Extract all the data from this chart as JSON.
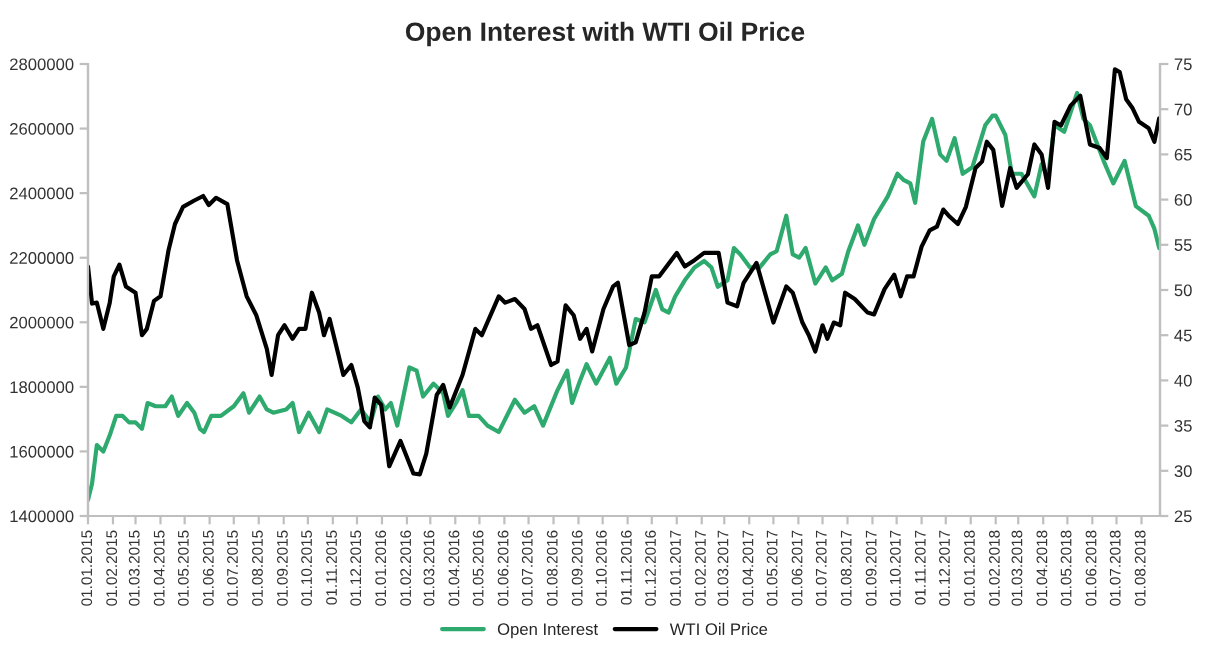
{
  "chart_data": {
    "type": "line",
    "title": "Open Interest with WTI Oil Price",
    "xlim": [
      "2015-01-01",
      "2018-08-24"
    ],
    "xticks": [
      {
        "value": "2015-01-01",
        "label": "01.01.2015"
      },
      {
        "value": "2015-02-01",
        "label": "01.02.2015"
      },
      {
        "value": "2015-03-01",
        "label": "01.03.2015"
      },
      {
        "value": "2015-04-01",
        "label": "01.04.2015"
      },
      {
        "value": "2015-05-01",
        "label": "01.05.2015"
      },
      {
        "value": "2015-06-01",
        "label": "01.06.2015"
      },
      {
        "value": "2015-07-01",
        "label": "01.07.2015"
      },
      {
        "value": "2015-08-01",
        "label": "01.08.2015"
      },
      {
        "value": "2015-09-01",
        "label": "01.09.2015"
      },
      {
        "value": "2015-10-01",
        "label": "01.10.2015"
      },
      {
        "value": "2015-11-01",
        "label": "01.11.2015"
      },
      {
        "value": "2015-12-01",
        "label": "01.12.2015"
      },
      {
        "value": "2016-01-01",
        "label": "01.01.2016"
      },
      {
        "value": "2016-02-01",
        "label": "01.02.2016"
      },
      {
        "value": "2016-03-01",
        "label": "01.03.2016"
      },
      {
        "value": "2016-04-01",
        "label": "01.04.2016"
      },
      {
        "value": "2016-05-01",
        "label": "01.05.2016"
      },
      {
        "value": "2016-06-01",
        "label": "01.06.2016"
      },
      {
        "value": "2016-07-01",
        "label": "01.07.2016"
      },
      {
        "value": "2016-08-01",
        "label": "01.08.2016"
      },
      {
        "value": "2016-09-01",
        "label": "01.09.2016"
      },
      {
        "value": "2016-10-01",
        "label": "01.10.2016"
      },
      {
        "value": "2016-11-01",
        "label": "01.11.2016"
      },
      {
        "value": "2016-12-01",
        "label": "01.12.2016"
      },
      {
        "value": "2017-01-01",
        "label": "01.01.2017"
      },
      {
        "value": "2017-02-01",
        "label": "01.02.2017"
      },
      {
        "value": "2017-03-01",
        "label": "01.03.2017"
      },
      {
        "value": "2017-04-01",
        "label": "01.04.2017"
      },
      {
        "value": "2017-05-01",
        "label": "01.05.2017"
      },
      {
        "value": "2017-06-01",
        "label": "01.06.2017"
      },
      {
        "value": "2017-07-01",
        "label": "01.07.2017"
      },
      {
        "value": "2017-08-01",
        "label": "01.08.2017"
      },
      {
        "value": "2017-09-01",
        "label": "01.09.2017"
      },
      {
        "value": "2017-10-01",
        "label": "01.10.2017"
      },
      {
        "value": "2017-11-01",
        "label": "01.11.2017"
      },
      {
        "value": "2017-12-01",
        "label": "01.12.2017"
      },
      {
        "value": "2018-01-01",
        "label": "01.01.2018"
      },
      {
        "value": "2018-02-01",
        "label": "01.02.2018"
      },
      {
        "value": "2018-03-01",
        "label": "01.03.2018"
      },
      {
        "value": "2018-04-01",
        "label": "01.04.2018"
      },
      {
        "value": "2018-05-01",
        "label": "01.05.2018"
      },
      {
        "value": "2018-06-01",
        "label": "01.06.2018"
      },
      {
        "value": "2018-07-01",
        "label": "01.07.2018"
      },
      {
        "value": "2018-08-01",
        "label": "01.08.2018"
      }
    ],
    "ylim": [
      1400000,
      2800000
    ],
    "yticks": [
      1400000,
      1600000,
      1800000,
      2000000,
      2200000,
      2400000,
      2600000,
      2800000
    ],
    "y2lim": [
      25,
      75
    ],
    "y2ticks": [
      25,
      30,
      35,
      40,
      45,
      50,
      55,
      60,
      65,
      70,
      75
    ],
    "grid": false,
    "legend": "bottom",
    "line_style": "solid",
    "series": [
      {
        "name": "Open Interest",
        "color": "#2eaa6e",
        "axis": "y",
        "x": [
          "2015-01-01",
          "2015-01-06",
          "2015-01-12",
          "2015-01-20",
          "2015-01-28",
          "2015-02-05",
          "2015-02-13",
          "2015-02-21",
          "2015-03-01",
          "2015-03-09",
          "2015-03-16",
          "2015-03-26",
          "2015-04-07",
          "2015-04-15",
          "2015-04-23",
          "2015-05-04",
          "2015-05-13",
          "2015-05-20",
          "2015-05-25",
          "2015-06-03",
          "2015-06-15",
          "2015-07-01",
          "2015-07-13",
          "2015-07-20",
          "2015-08-02",
          "2015-08-11",
          "2015-08-19",
          "2015-09-04",
          "2015-09-12",
          "2015-09-20",
          "2015-10-02",
          "2015-10-15",
          "2015-10-25",
          "2015-11-12",
          "2015-11-24",
          "2015-12-06",
          "2015-12-18",
          "2015-12-27",
          "2016-01-05",
          "2016-01-12",
          "2016-01-20",
          "2016-02-04",
          "2016-02-13",
          "2016-02-21",
          "2016-03-05",
          "2016-03-17",
          "2016-03-23",
          "2016-04-02",
          "2016-04-10",
          "2016-04-18",
          "2016-04-30",
          "2016-05-11",
          "2016-05-25",
          "2016-06-14",
          "2016-06-26",
          "2016-07-08",
          "2016-07-19",
          "2016-08-06",
          "2016-08-18",
          "2016-08-24",
          "2016-09-03",
          "2016-09-11",
          "2016-09-23",
          "2016-10-10",
          "2016-10-18",
          "2016-10-30",
          "2016-11-11",
          "2016-11-22",
          "2016-12-06",
          "2016-12-14",
          "2016-12-22",
          "2016-12-30",
          "2017-01-11",
          "2017-01-23",
          "2017-02-04",
          "2017-02-13",
          "2017-02-21",
          "2017-03-05",
          "2017-03-13",
          "2017-03-21",
          "2017-04-02",
          "2017-04-14",
          "2017-04-27",
          "2017-05-05",
          "2017-05-17",
          "2017-05-25",
          "2017-06-02",
          "2017-06-10",
          "2017-06-22",
          "2017-07-05",
          "2017-07-13",
          "2017-07-25",
          "2017-08-02",
          "2017-08-14",
          "2017-08-22",
          "2017-09-03",
          "2017-09-20",
          "2017-10-02",
          "2017-10-10",
          "2017-10-18",
          "2017-10-24",
          "2017-11-03",
          "2017-11-14",
          "2017-11-24",
          "2017-12-02",
          "2017-12-12",
          "2017-12-22",
          "2018-01-03",
          "2018-01-19",
          "2018-01-28",
          "2018-02-01",
          "2018-02-13",
          "2018-02-21",
          "2018-03-05",
          "2018-03-21",
          "2018-03-30",
          "2018-04-07",
          "2018-04-15",
          "2018-04-27",
          "2018-05-13",
          "2018-05-21",
          "2018-05-29",
          "2018-06-15",
          "2018-06-27",
          "2018-07-11",
          "2018-07-25",
          "2018-08-10",
          "2018-08-17",
          "2018-08-23"
        ],
        "values": [
          1450000,
          1500000,
          1620000,
          1600000,
          1650000,
          1710000,
          1710000,
          1690000,
          1690000,
          1670000,
          1750000,
          1740000,
          1740000,
          1770000,
          1710000,
          1750000,
          1720000,
          1670000,
          1660000,
          1710000,
          1710000,
          1740000,
          1780000,
          1720000,
          1770000,
          1730000,
          1720000,
          1730000,
          1750000,
          1660000,
          1720000,
          1660000,
          1730000,
          1710000,
          1690000,
          1730000,
          1690000,
          1770000,
          1730000,
          1750000,
          1680000,
          1860000,
          1850000,
          1770000,
          1810000,
          1780000,
          1710000,
          1750000,
          1790000,
          1710000,
          1710000,
          1680000,
          1660000,
          1760000,
          1720000,
          1740000,
          1680000,
          1790000,
          1850000,
          1750000,
          1820000,
          1870000,
          1810000,
          1890000,
          1810000,
          1860000,
          2010000,
          2000000,
          2100000,
          2040000,
          2030000,
          2080000,
          2130000,
          2170000,
          2190000,
          2170000,
          2110000,
          2130000,
          2230000,
          2210000,
          2170000,
          2170000,
          2210000,
          2220000,
          2330000,
          2210000,
          2200000,
          2230000,
          2120000,
          2170000,
          2130000,
          2150000,
          2220000,
          2300000,
          2240000,
          2320000,
          2390000,
          2460000,
          2440000,
          2430000,
          2370000,
          2560000,
          2630000,
          2520000,
          2500000,
          2570000,
          2460000,
          2480000,
          2610000,
          2640000,
          2640000,
          2580000,
          2460000,
          2460000,
          2390000,
          2490000,
          2450000,
          2610000,
          2590000,
          2710000,
          2630000,
          2610000,
          2500000,
          2430000,
          2500000,
          2360000,
          2330000,
          2290000,
          2230000
        ]
      },
      {
        "name": "WTI Oil Price",
        "color": "#000000",
        "axis": "y2",
        "x": [
          "2015-01-01",
          "2015-01-06",
          "2015-01-12",
          "2015-01-20",
          "2015-01-28",
          "2015-02-02",
          "2015-02-09",
          "2015-02-17",
          "2015-03-01",
          "2015-03-09",
          "2015-03-15",
          "2015-03-24",
          "2015-04-01",
          "2015-04-11",
          "2015-04-19",
          "2015-04-29",
          "2015-05-13",
          "2015-05-24",
          "2015-05-31",
          "2015-06-09",
          "2015-06-23",
          "2015-07-05",
          "2015-07-17",
          "2015-07-29",
          "2015-08-11",
          "2015-08-17",
          "2015-08-25",
          "2015-09-02",
          "2015-09-12",
          "2015-09-20",
          "2015-09-28",
          "2015-10-06",
          "2015-10-15",
          "2015-10-21",
          "2015-10-28",
          "2015-11-08",
          "2015-11-14",
          "2015-11-24",
          "2015-12-02",
          "2015-12-10",
          "2015-12-17",
          "2015-12-23",
          "2015-12-31",
          "2016-01-10",
          "2016-01-24",
          "2016-02-09",
          "2016-02-17",
          "2016-02-25",
          "2016-03-09",
          "2016-03-17",
          "2016-03-25",
          "2016-04-10",
          "2016-04-26",
          "2016-05-04",
          "2016-05-25",
          "2016-06-02",
          "2016-06-14",
          "2016-06-26",
          "2016-07-04",
          "2016-07-12",
          "2016-07-29",
          "2016-08-06",
          "2016-08-16",
          "2016-08-26",
          "2016-09-03",
          "2016-09-11",
          "2016-09-18",
          "2016-10-02",
          "2016-10-14",
          "2016-10-20",
          "2016-11-03",
          "2016-11-11",
          "2016-11-22",
          "2016-12-01",
          "2016-12-10",
          "2017-01-01",
          "2017-01-11",
          "2017-01-23",
          "2017-02-04",
          "2017-02-22",
          "2017-03-05",
          "2017-03-17",
          "2017-03-25",
          "2017-04-10",
          "2017-05-01",
          "2017-05-17",
          "2017-05-25",
          "2017-06-06",
          "2017-06-14",
          "2017-06-22",
          "2017-07-01",
          "2017-07-07",
          "2017-07-15",
          "2017-07-23",
          "2017-07-29",
          "2017-08-10",
          "2017-08-26",
          "2017-09-03",
          "2017-09-16",
          "2017-09-28",
          "2017-10-06",
          "2017-10-14",
          "2017-10-22",
          "2017-11-01",
          "2017-11-11",
          "2017-11-20",
          "2017-11-28",
          "2017-12-06",
          "2017-12-16",
          "2017-12-26",
          "2018-01-07",
          "2018-01-15",
          "2018-01-21",
          "2018-01-29",
          "2018-02-09",
          "2018-02-19",
          "2018-02-27",
          "2018-03-13",
          "2018-03-21",
          "2018-03-30",
          "2018-04-07",
          "2018-04-15",
          "2018-04-23",
          "2018-05-05",
          "2018-05-17",
          "2018-05-29",
          "2018-06-10",
          "2018-06-19",
          "2018-06-29",
          "2018-07-05",
          "2018-07-13",
          "2018-07-21",
          "2018-07-29",
          "2018-08-10",
          "2018-08-17",
          "2018-08-23"
        ],
        "values": [
          52.6,
          48.5,
          48.6,
          45.7,
          48.6,
          51.5,
          52.8,
          50.4,
          49.7,
          45.0,
          45.7,
          48.8,
          49.3,
          54.4,
          57.3,
          59.2,
          59.9,
          60.4,
          59.4,
          60.2,
          59.5,
          53.3,
          49.3,
          47.2,
          43.5,
          40.6,
          45.0,
          46.1,
          44.6,
          45.7,
          45.7,
          49.7,
          47.5,
          45.0,
          46.8,
          42.8,
          40.6,
          41.7,
          39.2,
          35.5,
          34.8,
          38.1,
          37.3,
          30.5,
          33.3,
          29.7,
          29.6,
          31.9,
          38.4,
          39.5,
          37.0,
          40.6,
          45.7,
          45.0,
          49.3,
          48.6,
          49.0,
          47.9,
          45.7,
          46.1,
          41.7,
          42.1,
          48.3,
          47.2,
          44.6,
          45.7,
          43.2,
          47.9,
          50.4,
          50.8,
          43.9,
          44.2,
          47.5,
          51.5,
          51.5,
          54.1,
          52.6,
          53.3,
          54.1,
          54.1,
          48.6,
          48.2,
          50.8,
          53.0,
          46.4,
          50.4,
          49.7,
          46.4,
          45.0,
          43.2,
          46.1,
          44.6,
          46.4,
          46.1,
          49.7,
          49.0,
          47.5,
          47.3,
          50.1,
          51.7,
          49.3,
          51.5,
          51.5,
          54.8,
          56.6,
          57.0,
          58.9,
          58.1,
          57.3,
          59.2,
          63.5,
          64.2,
          66.4,
          65.5,
          59.3,
          63.5,
          61.3,
          62.8,
          66.1,
          65.0,
          61.3,
          68.6,
          68.2,
          70.4,
          71.5,
          66.1,
          65.7,
          64.6,
          74.4,
          74.1,
          71.1,
          70.1,
          68.6,
          67.9,
          66.4,
          69.0
        ]
      }
    ]
  }
}
